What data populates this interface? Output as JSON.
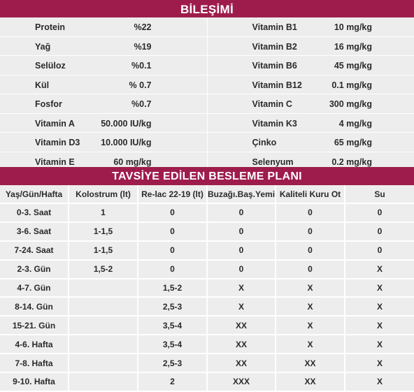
{
  "composition": {
    "title": "BİLEŞİMİ",
    "left": [
      {
        "name": "Protein",
        "value": "%22"
      },
      {
        "name": "Yağ",
        "value": "%19"
      },
      {
        "name": "Selüloz",
        "value": "%0.1"
      },
      {
        "name": "Kül",
        "value": "% 0.7"
      },
      {
        "name": "Fosfor",
        "value": "%0.7"
      },
      {
        "name": "Vitamin A",
        "value": "50.000 IU/kg"
      },
      {
        "name": "Vitamin D3",
        "value": "10.000 IU/kg"
      },
      {
        "name": "Vitamin E",
        "value": "60 mg/kg"
      }
    ],
    "right": [
      {
        "name": "Vitamin B1",
        "value": "10 mg/kg"
      },
      {
        "name": "Vitamin B2",
        "value": "16 mg/kg"
      },
      {
        "name": "Vitamin B6",
        "value": "45 mg/kg"
      },
      {
        "name": "Vitamin B12",
        "value": "0.1 mg/kg"
      },
      {
        "name": "Vitamin C",
        "value": "300 mg/kg"
      },
      {
        "name": "Vitamin K3",
        "value": "4 mg/kg"
      },
      {
        "name": "Çinko",
        "value": "65 mg/kg"
      },
      {
        "name": "Selenyum",
        "value": "0.2 mg/kg"
      }
    ]
  },
  "plan": {
    "title": "TAVSİYE EDİLEN BESLEME PLANI",
    "headers": [
      "Yaş/Gün/Hafta",
      "Kolostrum (lt)",
      "Re-lac 22-19 (lt)",
      "Buzağı.Baş.Yemi",
      "Kaliteli Kuru Ot",
      "Su"
    ],
    "rows": [
      [
        "0-3. Saat",
        "1",
        "0",
        "0",
        "0",
        "0"
      ],
      [
        "3-6. Saat",
        "1-1,5",
        "0",
        "0",
        "0",
        "0"
      ],
      [
        "7-24. Saat",
        "1-1,5",
        "0",
        "0",
        "0",
        "0"
      ],
      [
        "2-3. Gün",
        "1,5-2",
        "0",
        "0",
        "0",
        "X"
      ],
      [
        "4-7. Gün",
        "",
        "1,5-2",
        "X",
        "X",
        "X"
      ],
      [
        "8-14. Gün",
        "",
        "2,5-3",
        "X",
        "X",
        "X"
      ],
      [
        "15-21. Gün",
        "",
        "3,5-4",
        "XX",
        "X",
        "X"
      ],
      [
        "4-6. Hafta",
        "",
        "3,5-4",
        "XX",
        "X",
        "X"
      ],
      [
        "7-8. Hafta",
        "",
        "2,5-3",
        "XX",
        "XX",
        "X"
      ],
      [
        "9-10. Hafta",
        "",
        "2",
        "XXX",
        "XX",
        "X"
      ]
    ]
  },
  "colors": {
    "accent": "#9e1c4c",
    "cell_background": "#ededed",
    "grid_lines": "#ffffff"
  }
}
